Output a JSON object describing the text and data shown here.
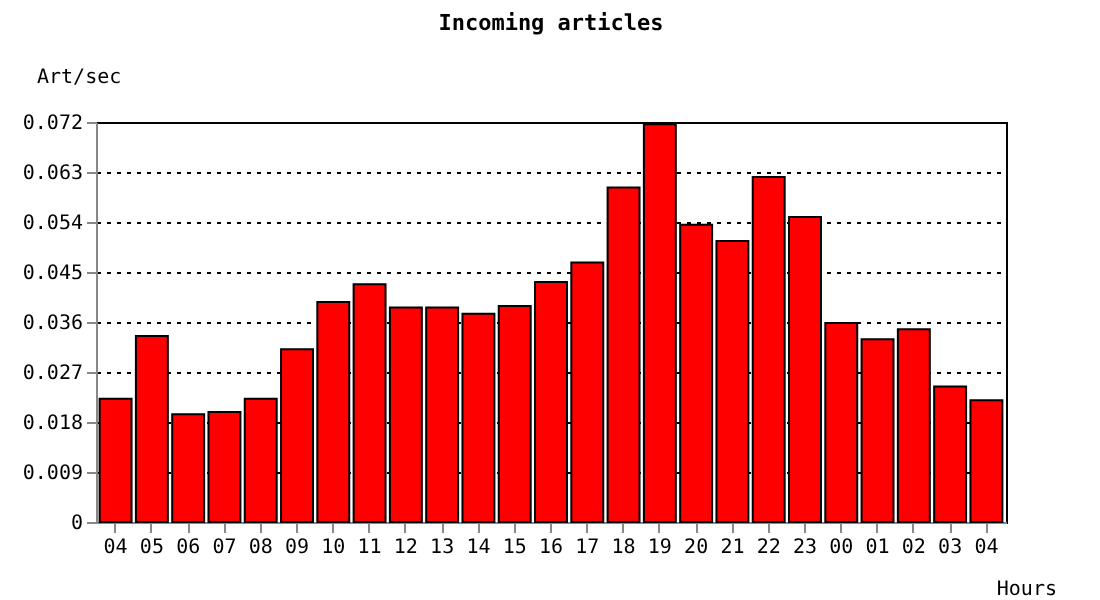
{
  "chart_data": {
    "type": "bar",
    "title": "Incoming articles",
    "ylabel": "Art/sec",
    "xlabel": "Hours",
    "categories": [
      "04",
      "05",
      "06",
      "07",
      "08",
      "09",
      "10",
      "11",
      "12",
      "13",
      "14",
      "15",
      "16",
      "17",
      "18",
      "19",
      "20",
      "21",
      "22",
      "23",
      "00",
      "01",
      "02",
      "03",
      "04"
    ],
    "values": [
      0.0222,
      0.0335,
      0.0194,
      0.0198,
      0.0222,
      0.0311,
      0.0396,
      0.0428,
      0.0386,
      0.0386,
      0.0375,
      0.0389,
      0.0432,
      0.0467,
      0.0602,
      0.0716,
      0.0535,
      0.0506,
      0.0621,
      0.0549,
      0.0358,
      0.0329,
      0.0347,
      0.0244,
      0.0219
    ],
    "color": "#ff0000",
    "ylim": [
      0,
      0.072
    ],
    "yticks": [
      0,
      0.009,
      0.018,
      0.027,
      0.036,
      0.045,
      0.054,
      0.063,
      0.072
    ],
    "grid": "y"
  }
}
